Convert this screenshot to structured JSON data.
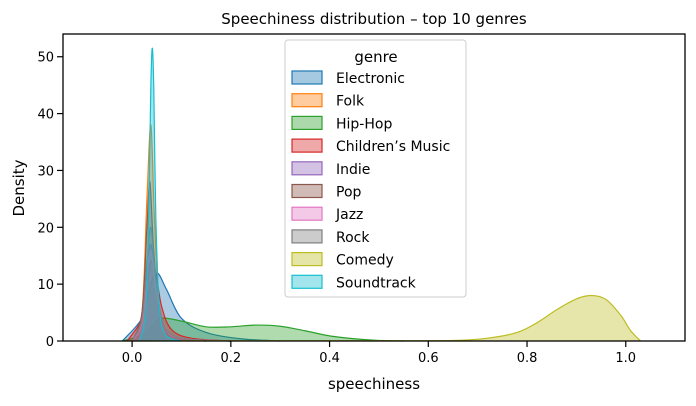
{
  "chart_data": {
    "type": "area",
    "title": "Speechiness distribution – top 10 genres",
    "xlabel": "speechiness",
    "ylabel": "Density",
    "xlim": [
      -0.14,
      1.12
    ],
    "ylim": [
      0,
      54
    ],
    "xticks": [
      "0.0",
      "0.2",
      "0.4",
      "0.6",
      "0.8",
      "1.0"
    ],
    "xtick_values": [
      0,
      0.2,
      0.4,
      0.6,
      0.8,
      1.0
    ],
    "yticks": [
      "0",
      "10",
      "20",
      "30",
      "40",
      "50"
    ],
    "ytick_values": [
      0,
      10,
      20,
      30,
      40,
      50
    ],
    "grid": false,
    "legend": {
      "title": "genre",
      "placement": "top-center"
    },
    "series": [
      {
        "name": "Electronic",
        "color": "#1f77b4",
        "x": [
          -0.02,
          0.02,
          0.035,
          0.05,
          0.07,
          0.1,
          0.15,
          0.22,
          0.3
        ],
        "values": [
          0,
          4,
          9,
          12,
          9,
          4,
          1.5,
          0.4,
          0
        ]
      },
      {
        "name": "Folk",
        "color": "#ff7f0e",
        "x": [
          0.0,
          0.02,
          0.03,
          0.038,
          0.045,
          0.055,
          0.07,
          0.1,
          0.15
        ],
        "values": [
          0,
          5,
          25,
          38,
          22,
          6,
          1.5,
          0.3,
          0
        ]
      },
      {
        "name": "Hip-Hop",
        "color": "#2ca02c",
        "x": [
          -0.02,
          0.02,
          0.04,
          0.06,
          0.1,
          0.15,
          0.2,
          0.25,
          0.3,
          0.35,
          0.4,
          0.45,
          0.5,
          0.55
        ],
        "values": [
          0,
          1,
          2.5,
          4,
          3.5,
          2.5,
          2.5,
          2.8,
          2.6,
          1.8,
          0.9,
          0.4,
          0.1,
          0
        ]
      },
      {
        "name": "Children’s Music",
        "color": "#d62728",
        "x": [
          -0.01,
          0.02,
          0.03,
          0.038,
          0.048,
          0.06,
          0.08,
          0.12,
          0.2
        ],
        "values": [
          0,
          4,
          10,
          14,
          12,
          6,
          2,
          0.5,
          0
        ]
      },
      {
        "name": "Indie",
        "color": "#9467bd",
        "x": [
          0.0,
          0.02,
          0.03,
          0.038,
          0.048,
          0.06,
          0.08,
          0.12,
          0.2
        ],
        "values": [
          0,
          3,
          12,
          17,
          10,
          4,
          1.2,
          0.3,
          0
        ]
      },
      {
        "name": "Pop",
        "color": "#8c564b",
        "x": [
          0.0,
          0.02,
          0.03,
          0.036,
          0.043,
          0.055,
          0.07,
          0.1,
          0.15
        ],
        "values": [
          0,
          5,
          20,
          28,
          17,
          5,
          1.2,
          0.3,
          0
        ]
      },
      {
        "name": "Jazz",
        "color": "#e377c2",
        "x": [
          0.0,
          0.02,
          0.03,
          0.038,
          0.047,
          0.06,
          0.08,
          0.12,
          0.2
        ],
        "values": [
          0,
          3,
          11,
          16,
          10,
          4,
          1.2,
          0.3,
          0
        ]
      },
      {
        "name": "Rock",
        "color": "#7f7f7f",
        "x": [
          0.0,
          0.02,
          0.03,
          0.038,
          0.047,
          0.06,
          0.08,
          0.12,
          0.2
        ],
        "values": [
          0,
          4,
          14,
          20,
          12,
          4,
          1.2,
          0.3,
          0
        ]
      },
      {
        "name": "Comedy",
        "color": "#bcbd22",
        "x": [
          0.0,
          0.1,
          0.3,
          0.5,
          0.65,
          0.72,
          0.78,
          0.82,
          0.86,
          0.9,
          0.93,
          0.96,
          0.99,
          1.01,
          1.03
        ],
        "values": [
          0,
          0.05,
          0.05,
          0.05,
          0.1,
          0.5,
          1.5,
          3.2,
          5.5,
          7.4,
          8.0,
          7.3,
          4.5,
          1.8,
          0
        ]
      },
      {
        "name": "Soundtrack",
        "color": "#17becf",
        "x": [
          0.015,
          0.028,
          0.034,
          0.038,
          0.041,
          0.044,
          0.048,
          0.055,
          0.065,
          0.08,
          0.1
        ],
        "values": [
          0,
          6,
          25,
          45,
          51.5,
          44,
          22,
          6,
          1.5,
          0.4,
          0
        ]
      }
    ]
  }
}
